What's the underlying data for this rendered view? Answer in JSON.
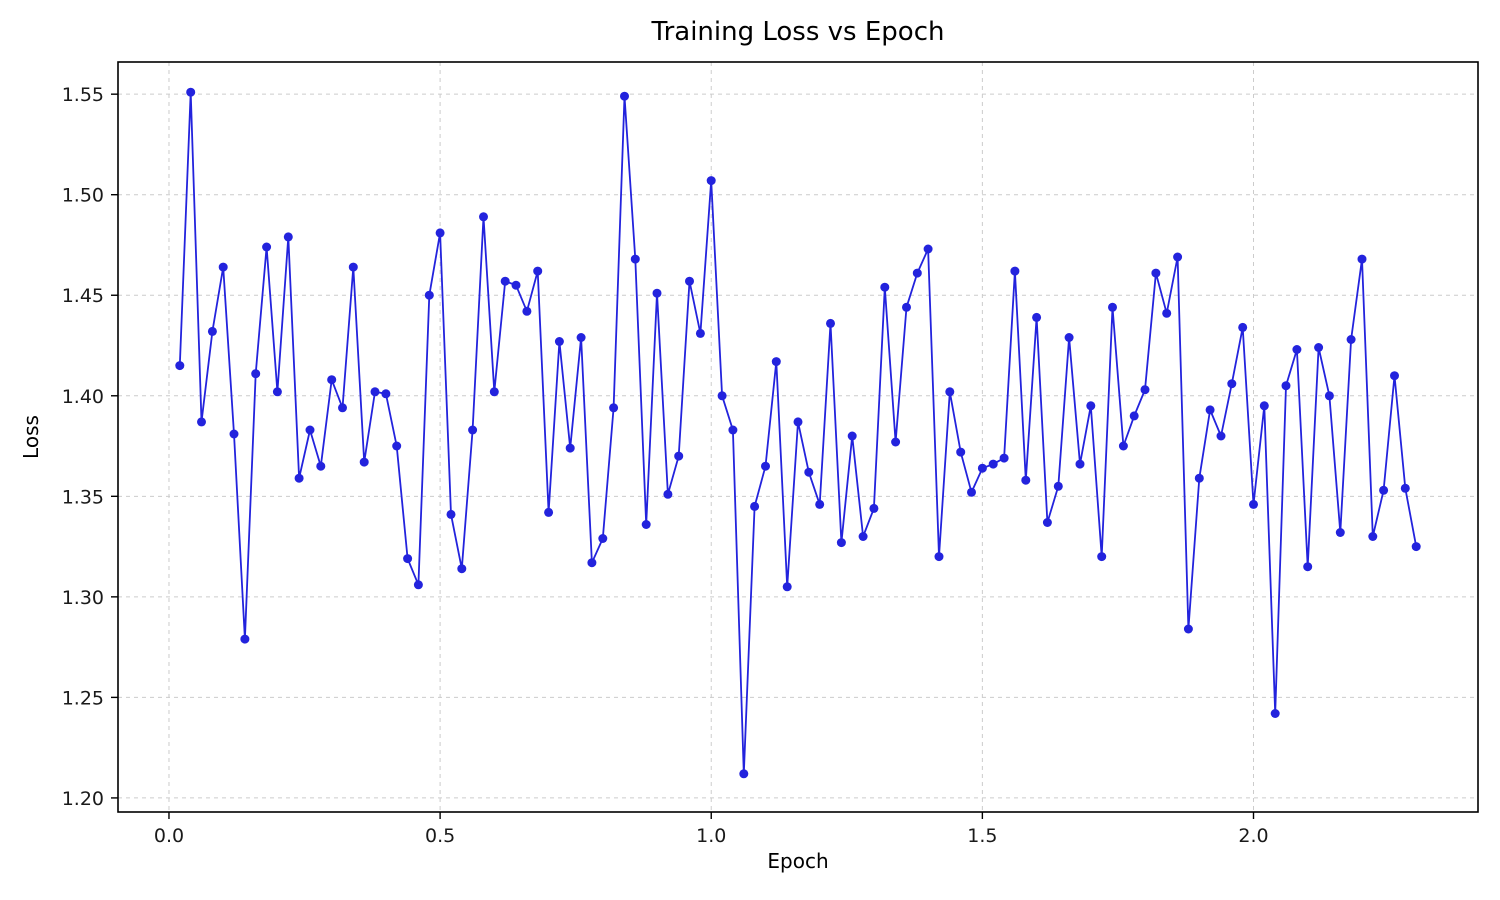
{
  "chart_data": {
    "type": "line",
    "title": "Training  Loss vs Epoch",
    "xlabel": "Epoch",
    "ylabel": "Loss",
    "line_color": "#2323dd",
    "marker": "circle",
    "marker_color": "#2323dd",
    "grid": "dashed",
    "grid_color": "#cccccc",
    "xlim": [
      -0.094,
      2.414
    ],
    "ylim": [
      1.193,
      1.566
    ],
    "x_ticks": [
      0.0,
      0.5,
      1.0,
      1.5,
      2.0
    ],
    "y_ticks": [
      1.2,
      1.25,
      1.3,
      1.35,
      1.4,
      1.45,
      1.5,
      1.55
    ],
    "x_start": 0.02,
    "x_step": 0.02,
    "series": [
      {
        "name": "Training Loss",
        "values": [
          1.415,
          1.551,
          1.387,
          1.432,
          1.464,
          1.381,
          1.279,
          1.411,
          1.474,
          1.402,
          1.479,
          1.359,
          1.383,
          1.365,
          1.408,
          1.394,
          1.464,
          1.367,
          1.402,
          1.401,
          1.375,
          1.319,
          1.306,
          1.45,
          1.481,
          1.341,
          1.314,
          1.383,
          1.489,
          1.402,
          1.457,
          1.455,
          1.442,
          1.462,
          1.342,
          1.427,
          1.374,
          1.429,
          1.317,
          1.329,
          1.394,
          1.549,
          1.468,
          1.336,
          1.451,
          1.351,
          1.37,
          1.457,
          1.431,
          1.507,
          1.4,
          1.383,
          1.212,
          1.345,
          1.365,
          1.417,
          1.305,
          1.387,
          1.362,
          1.346,
          1.436,
          1.327,
          1.38,
          1.33,
          1.344,
          1.454,
          1.377,
          1.444,
          1.461,
          1.473,
          1.32,
          1.402,
          1.372,
          1.352,
          1.364,
          1.366,
          1.369,
          1.462,
          1.358,
          1.439,
          1.337,
          1.355,
          1.429,
          1.366,
          1.395,
          1.32,
          1.444,
          1.375,
          1.39,
          1.403,
          1.461,
          1.441,
          1.469,
          1.284,
          1.359,
          1.393,
          1.38,
          1.406,
          1.434,
          1.346,
          1.395,
          1.242,
          1.405,
          1.423,
          1.315,
          1.424,
          1.4,
          1.332,
          1.428,
          1.468,
          1.33,
          1.353,
          1.41,
          1.354,
          1.325
        ]
      }
    ]
  }
}
